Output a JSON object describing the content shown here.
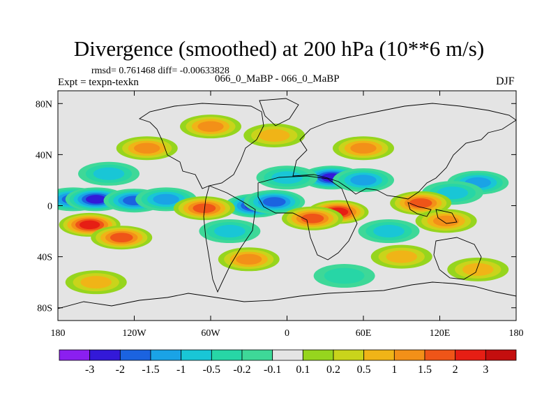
{
  "header": {
    "title": "Divergence (smoothed) at 200 hPa (10**6 m/s)",
    "stats": "rmsd= 0.761468 diff= -0.00633828",
    "experiment": "Expt = texpn-texkn",
    "case": "066_0_MaBP - 066_0_MaBP",
    "season": "DJF"
  },
  "chart_data": {
    "type": "heatmap",
    "title": "Divergence (smoothed) at 200 hPa (10**6 m/s)",
    "xlabel": "",
    "ylabel": "",
    "xlim": [
      -180,
      180
    ],
    "ylim": [
      -90,
      90
    ],
    "x_ticks": [
      {
        "value": -180,
        "label": "180"
      },
      {
        "value": -120,
        "label": "120W"
      },
      {
        "value": -60,
        "label": "60W"
      },
      {
        "value": 0,
        "label": "0"
      },
      {
        "value": 60,
        "label": "60E"
      },
      {
        "value": 120,
        "label": "120E"
      },
      {
        "value": 180,
        "label": "180"
      }
    ],
    "y_ticks": [
      {
        "value": 80,
        "label": "80N"
      },
      {
        "value": 40,
        "label": "40N"
      },
      {
        "value": 0,
        "label": "0"
      },
      {
        "value": -40,
        "label": "40S"
      },
      {
        "value": -80,
        "label": "80S"
      }
    ],
    "colorbar": {
      "labels": [
        "-3",
        "-2",
        "-1.5",
        "-1",
        "-0.5",
        "-0.2",
        "-0.1",
        "0.1",
        "0.2",
        "0.5",
        "1",
        "1.5",
        "2",
        "3"
      ],
      "colors": [
        "#8b1ff0",
        "#3319d8",
        "#1b63e0",
        "#1aa3e6",
        "#19c6d6",
        "#27d6a6",
        "#3ed898",
        "#e4e4e4",
        "#96d51e",
        "#c9d41b",
        "#f0b417",
        "#f39018",
        "#ef5518",
        "#e61e14",
        "#c40e0e"
      ]
    },
    "blobs": [
      {
        "lon": -168,
        "lat": 5,
        "level": -1.6
      },
      {
        "lon": -150,
        "lat": 5,
        "level": -2.2
      },
      {
        "lon": -120,
        "lat": 4,
        "level": -1.8
      },
      {
        "lon": -95,
        "lat": 5,
        "level": -1.2
      },
      {
        "lon": -25,
        "lat": 0,
        "level": -2.4
      },
      {
        "lon": -10,
        "lat": 3,
        "level": -1.8
      },
      {
        "lon": 35,
        "lat": 22,
        "level": -2.0
      },
      {
        "lon": 60,
        "lat": 20,
        "level": -1.0
      },
      {
        "lon": 150,
        "lat": 18,
        "level": -1.4
      },
      {
        "lon": -140,
        "lat": 25,
        "level": -0.6
      },
      {
        "lon": 0,
        "lat": 22,
        "level": -0.8
      },
      {
        "lon": 130,
        "lat": 10,
        "level": -0.6
      },
      {
        "lon": -45,
        "lat": -20,
        "level": -0.8
      },
      {
        "lon": 80,
        "lat": -20,
        "level": -0.7
      },
      {
        "lon": 45,
        "lat": -55,
        "level": -0.4
      },
      {
        "lon": -155,
        "lat": -15,
        "level": 2.4
      },
      {
        "lon": -130,
        "lat": -25,
        "level": 1.6
      },
      {
        "lon": -65,
        "lat": -2,
        "level": 1.8
      },
      {
        "lon": 40,
        "lat": -5,
        "level": 2.8
      },
      {
        "lon": 20,
        "lat": -10,
        "level": 1.6
      },
      {
        "lon": 105,
        "lat": 2,
        "level": 1.5
      },
      {
        "lon": 125,
        "lat": -12,
        "level": 1.1
      },
      {
        "lon": -110,
        "lat": 45,
        "level": 1.3
      },
      {
        "lon": -60,
        "lat": 62,
        "level": 1.2
      },
      {
        "lon": 60,
        "lat": 45,
        "level": 1.0
      },
      {
        "lon": -10,
        "lat": 55,
        "level": 0.6
      },
      {
        "lon": -30,
        "lat": -42,
        "level": 1.4
      },
      {
        "lon": 90,
        "lat": -40,
        "level": 0.9
      },
      {
        "lon": 150,
        "lat": -50,
        "level": 0.9
      },
      {
        "lon": -150,
        "lat": -60,
        "level": 0.5
      }
    ]
  }
}
